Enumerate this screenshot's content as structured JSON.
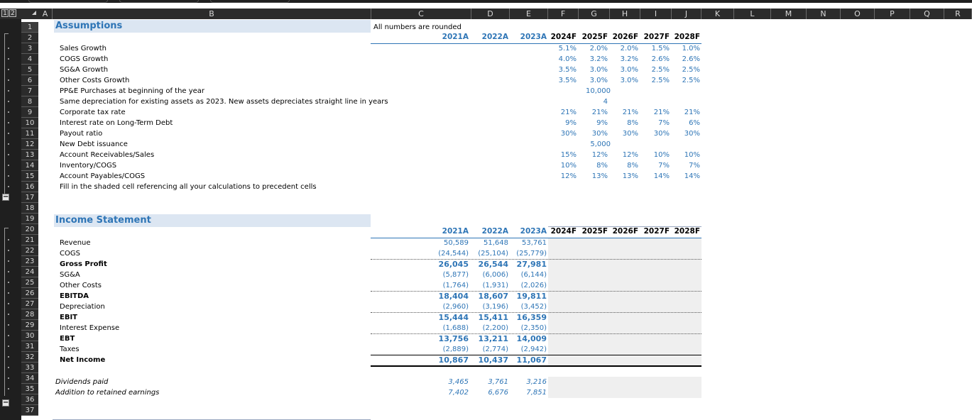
{
  "outline_levels": [
    "1",
    "2"
  ],
  "columns": [
    "A",
    "B",
    "C",
    "D",
    "E",
    "F",
    "G",
    "H",
    "I",
    "J",
    "K",
    "L",
    "M",
    "N",
    "O",
    "P",
    "Q",
    "R"
  ],
  "rows": [
    "1",
    "2",
    "3",
    "4",
    "5",
    "6",
    "7",
    "8",
    "9",
    "10",
    "11",
    "12",
    "13",
    "14",
    "15",
    "16",
    "17",
    "18",
    "19",
    "20",
    "21",
    "22",
    "23",
    "24",
    "25",
    "26",
    "27",
    "28",
    "29",
    "30",
    "31",
    "32",
    "33",
    "34",
    "35",
    "36",
    "37"
  ],
  "assumptions": {
    "title": "Assumptions",
    "note": "All numbers are rounded",
    "years": [
      "2021A",
      "2022A",
      "2023A",
      "2024F",
      "2025F",
      "2026F",
      "2027F",
      "2028F"
    ],
    "labels": [
      "Sales Growth",
      "COGS Growth",
      "SG&A Growth",
      "Other Costs Growth",
      "PP&E Purchases at beginning of the year",
      "Same depreciation for existing assets as 2023. New assets depreciates straight line in years",
      "Corporate tax rate",
      "Interest rate on Long-Term Debt",
      "Payout ratio",
      "New Debt issuance",
      "Account Receivables/Sales",
      "Inventory/COGS",
      "Account Payables/COGS",
      "Fill in the shaded cell referencing all your calculations to precedent cells"
    ],
    "values": {
      "sales_growth": [
        "5.1%",
        "2.0%",
        "2.0%",
        "1.5%",
        "1.0%"
      ],
      "cogs_growth": [
        "4.0%",
        "3.2%",
        "3.2%",
        "2.6%",
        "2.6%"
      ],
      "sga_growth": [
        "3.5%",
        "3.0%",
        "3.0%",
        "2.5%",
        "2.5%"
      ],
      "other_growth": [
        "3.5%",
        "3.0%",
        "3.0%",
        "2.5%",
        "2.5%"
      ],
      "ppe_purchases": "10,000",
      "depr_years": "4",
      "tax_rate": [
        "21%",
        "21%",
        "21%",
        "21%",
        "21%"
      ],
      "interest_rate": [
        "9%",
        "9%",
        "8%",
        "7%",
        "6%"
      ],
      "payout": [
        "30%",
        "30%",
        "30%",
        "30%",
        "30%"
      ],
      "new_debt": "5,000",
      "ar_sales": [
        "15%",
        "12%",
        "12%",
        "10%",
        "10%"
      ],
      "inv_cogs": [
        "10%",
        "8%",
        "8%",
        "7%",
        "7%"
      ],
      "ap_cogs": [
        "12%",
        "13%",
        "13%",
        "14%",
        "14%"
      ]
    }
  },
  "income": {
    "title": "Income Statement",
    "years": [
      "2021A",
      "2022A",
      "2023A",
      "2024F",
      "2025F",
      "2026F",
      "2027F",
      "2028F"
    ],
    "rows": [
      {
        "label": "Revenue",
        "bold": false,
        "vals": [
          "50,589",
          "51,648",
          "53,761"
        ]
      },
      {
        "label": "COGS",
        "bold": false,
        "vals": [
          "(24,544)",
          "(25,104)",
          "(25,779)"
        ]
      },
      {
        "label": "Gross Profit",
        "bold": true,
        "vals": [
          "26,045",
          "26,544",
          "27,981"
        ]
      },
      {
        "label": "SG&A",
        "bold": false,
        "vals": [
          "(5,877)",
          "(6,006)",
          "(6,144)"
        ]
      },
      {
        "label": "Other Costs",
        "bold": false,
        "vals": [
          "(1,764)",
          "(1,931)",
          "(2,026)"
        ]
      },
      {
        "label": "EBITDA",
        "bold": true,
        "vals": [
          "18,404",
          "18,607",
          "19,811"
        ]
      },
      {
        "label": "Depreciation",
        "bold": false,
        "vals": [
          "(2,960)",
          "(3,196)",
          "(3,452)"
        ]
      },
      {
        "label": "EBIT",
        "bold": true,
        "vals": [
          "15,444",
          "15,411",
          "16,359"
        ]
      },
      {
        "label": "Interest Expense",
        "bold": false,
        "vals": [
          "(1,688)",
          "(2,200)",
          "(2,350)"
        ]
      },
      {
        "label": "EBT",
        "bold": true,
        "vals": [
          "13,756",
          "13,211",
          "14,009"
        ]
      },
      {
        "label": "Taxes",
        "bold": false,
        "vals": [
          "(2,889)",
          "(2,774)",
          "(2,942)"
        ]
      },
      {
        "label": "Net Income",
        "bold": true,
        "vals": [
          "10,867",
          "10,437",
          "11,067"
        ]
      }
    ],
    "dividends": {
      "label": "Dividends paid",
      "vals": [
        "3,465",
        "3,761",
        "3,216"
      ]
    },
    "retained": {
      "label": "Addition to retained earnings",
      "vals": [
        "7,402",
        "6,676",
        "7,851"
      ]
    }
  }
}
